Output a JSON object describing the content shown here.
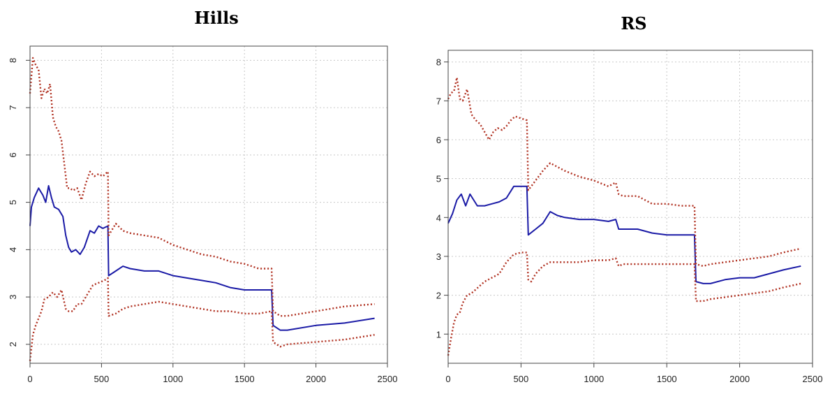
{
  "chart_data": [
    {
      "type": "line",
      "title": "Hills",
      "xlim": [
        0,
        2500
      ],
      "ylim": [
        1.6,
        8.3
      ],
      "x_ticks": [
        0,
        500,
        1000,
        1500,
        2000,
        2500
      ],
      "y_ticks": [
        2,
        3,
        4,
        5,
        6,
        7,
        8
      ],
      "y_tick_labels_rotated": true,
      "grid": true,
      "series": [
        {
          "style": "solid",
          "color": "#1a1aa6",
          "x": [
            0,
            10,
            30,
            60,
            90,
            110,
            130,
            150,
            170,
            200,
            230,
            250,
            270,
            290,
            320,
            350,
            380,
            420,
            450,
            480,
            510,
            545,
            550,
            600,
            650,
            700,
            800,
            900,
            1000,
            1100,
            1200,
            1300,
            1400,
            1500,
            1600,
            1690,
            1700,
            1750,
            1800,
            2000,
            2200,
            2410
          ],
          "y": [
            4.5,
            4.9,
            5.1,
            5.3,
            5.15,
            5.0,
            5.35,
            5.1,
            4.9,
            4.85,
            4.7,
            4.3,
            4.05,
            3.95,
            4.0,
            3.9,
            4.05,
            4.4,
            4.35,
            4.5,
            4.45,
            4.5,
            3.45,
            3.55,
            3.65,
            3.6,
            3.55,
            3.55,
            3.45,
            3.4,
            3.35,
            3.3,
            3.2,
            3.15,
            3.15,
            3.15,
            2.4,
            2.3,
            2.3,
            2.4,
            2.45,
            2.55
          ]
        },
        {
          "style": "dotted",
          "color": "#b03020",
          "x": [
            0,
            20,
            40,
            60,
            80,
            100,
            120,
            140,
            160,
            180,
            200,
            220,
            240,
            260,
            280,
            300,
            330,
            360,
            390,
            420,
            450,
            480,
            510,
            545,
            550,
            600,
            650,
            700,
            800,
            900,
            1000,
            1100,
            1200,
            1300,
            1400,
            1500,
            1600,
            1690,
            1700,
            1750,
            1800,
            2000,
            2200,
            2410
          ],
          "y": [
            7.3,
            8.05,
            7.9,
            7.8,
            7.2,
            7.4,
            7.3,
            7.5,
            6.8,
            6.6,
            6.5,
            6.3,
            5.8,
            5.3,
            5.3,
            5.25,
            5.3,
            5.05,
            5.4,
            5.65,
            5.55,
            5.6,
            5.55,
            5.65,
            4.3,
            4.55,
            4.4,
            4.35,
            4.3,
            4.25,
            4.1,
            4.0,
            3.9,
            3.85,
            3.75,
            3.7,
            3.6,
            3.6,
            2.7,
            2.6,
            2.6,
            2.7,
            2.8,
            2.85
          ]
        },
        {
          "style": "dotted",
          "color": "#b03020",
          "x": [
            0,
            20,
            40,
            60,
            80,
            100,
            130,
            160,
            190,
            220,
            250,
            270,
            300,
            330,
            360,
            400,
            440,
            480,
            520,
            545,
            550,
            600,
            650,
            700,
            800,
            900,
            1000,
            1100,
            1200,
            1300,
            1400,
            1500,
            1600,
            1690,
            1700,
            1750,
            1800,
            2000,
            2200,
            2410
          ],
          "y": [
            1.65,
            2.2,
            2.4,
            2.55,
            2.7,
            2.95,
            3.0,
            3.1,
            3.0,
            3.15,
            2.75,
            2.7,
            2.7,
            2.85,
            2.85,
            3.05,
            3.25,
            3.3,
            3.35,
            3.4,
            2.6,
            2.65,
            2.75,
            2.8,
            2.85,
            2.9,
            2.85,
            2.8,
            2.75,
            2.7,
            2.7,
            2.65,
            2.65,
            2.7,
            2.05,
            1.95,
            2.0,
            2.05,
            2.1,
            2.2
          ]
        }
      ]
    },
    {
      "type": "line",
      "title": "RS",
      "xlim": [
        0,
        2500
      ],
      "ylim": [
        0.25,
        8.3
      ],
      "x_ticks": [
        0,
        500,
        1000,
        1500,
        2000,
        2500
      ],
      "y_ticks": [
        1,
        2,
        3,
        4,
        5,
        6,
        7,
        8
      ],
      "grid": true,
      "series": [
        {
          "style": "solid",
          "color": "#1a1aa6",
          "x": [
            0,
            30,
            60,
            90,
            120,
            150,
            200,
            250,
            300,
            350,
            400,
            450,
            500,
            540,
            550,
            600,
            650,
            700,
            750,
            800,
            900,
            1000,
            1100,
            1150,
            1170,
            1200,
            1300,
            1400,
            1500,
            1600,
            1690,
            1700,
            1750,
            1800,
            1900,
            2000,
            2100,
            2200,
            2300,
            2420
          ],
          "y": [
            3.85,
            4.1,
            4.45,
            4.6,
            4.3,
            4.6,
            4.3,
            4.3,
            4.35,
            4.4,
            4.5,
            4.8,
            4.8,
            4.8,
            3.55,
            3.7,
            3.85,
            4.15,
            4.05,
            4.0,
            3.95,
            3.95,
            3.9,
            3.95,
            3.7,
            3.7,
            3.7,
            3.6,
            3.55,
            3.55,
            3.55,
            2.35,
            2.3,
            2.3,
            2.4,
            2.45,
            2.45,
            2.55,
            2.65,
            2.75
          ]
        },
        {
          "style": "dotted",
          "color": "#b03020",
          "x": [
            0,
            20,
            40,
            60,
            80,
            100,
            130,
            160,
            190,
            220,
            250,
            280,
            310,
            340,
            370,
            400,
            430,
            460,
            500,
            540,
            550,
            600,
            650,
            700,
            800,
            900,
            1000,
            1100,
            1150,
            1170,
            1200,
            1300,
            1400,
            1500,
            1600,
            1690,
            1700,
            1750,
            1800,
            1900,
            2000,
            2100,
            2200,
            2300,
            2420
          ],
          "y": [
            7.05,
            7.2,
            7.25,
            7.6,
            7.05,
            7.0,
            7.3,
            6.65,
            6.5,
            6.4,
            6.2,
            6.0,
            6.2,
            6.3,
            6.25,
            6.35,
            6.5,
            6.6,
            6.55,
            6.5,
            4.7,
            4.95,
            5.2,
            5.4,
            5.2,
            5.05,
            4.95,
            4.8,
            4.9,
            4.6,
            4.55,
            4.55,
            4.35,
            4.35,
            4.3,
            4.3,
            2.8,
            2.75,
            2.8,
            2.85,
            2.9,
            2.95,
            3.0,
            3.1,
            3.2
          ]
        },
        {
          "style": "dotted",
          "color": "#b03020",
          "x": [
            0,
            20,
            40,
            60,
            80,
            100,
            130,
            160,
            190,
            220,
            250,
            300,
            350,
            400,
            450,
            500,
            540,
            550,
            570,
            600,
            650,
            700,
            800,
            900,
            1000,
            1100,
            1150,
            1170,
            1200,
            1300,
            1400,
            1500,
            1600,
            1690,
            1700,
            1750,
            1800,
            1900,
            2000,
            2100,
            2200,
            2300,
            2420
          ],
          "y": [
            0.45,
            0.9,
            1.3,
            1.5,
            1.55,
            1.8,
            2.0,
            2.05,
            2.15,
            2.25,
            2.35,
            2.45,
            2.55,
            2.85,
            3.05,
            3.1,
            3.1,
            2.4,
            2.35,
            2.55,
            2.75,
            2.85,
            2.85,
            2.85,
            2.9,
            2.9,
            2.95,
            2.75,
            2.8,
            2.8,
            2.8,
            2.8,
            2.8,
            2.8,
            1.85,
            1.85,
            1.9,
            1.95,
            2.0,
            2.05,
            2.1,
            2.2,
            2.3
          ]
        }
      ]
    }
  ]
}
